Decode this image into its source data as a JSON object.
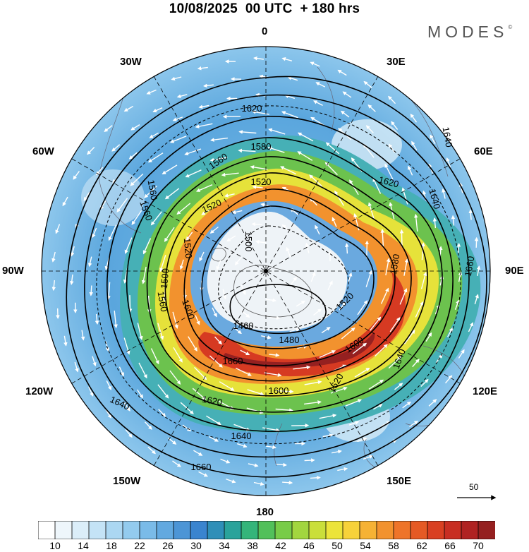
{
  "header": {
    "title": "10/08/2025  00 UTC  + 180 hrs",
    "brand": "MODES",
    "brand_mark": "©"
  },
  "map": {
    "projection": "south-polar-stereographic",
    "longitude_labels": {
      "top": "0",
      "top_right": "30E",
      "upper_right": "60E",
      "right": "90E",
      "lower_right": "120E",
      "bottom_right": "150E",
      "bottom": "180",
      "bottom_left": "150W",
      "lower_left": "120W",
      "left": "90W",
      "upper_left": "60W",
      "top_left": "30W"
    },
    "contour_labels": [
      "1620",
      "1580",
      "1560",
      "1520",
      "1520",
      "1520",
      "1500",
      "1500",
      "1560",
      "1560",
      "1600",
      "1620",
      "1640",
      "1640",
      "1660",
      "1640",
      "1620",
      "1600",
      "1580",
      "1640",
      "1660",
      "1620",
      "1560",
      "1460",
      "1480",
      "1520",
      "1600",
      "1640",
      "1660"
    ],
    "wind_vector_reference": "50",
    "colors": {
      "ocean_fill": "#ffffff",
      "contour_line": "#000000",
      "vector": "#ffffff"
    }
  },
  "colorbar": {
    "labels": [
      "10",
      "14",
      "18",
      "22",
      "26",
      "30",
      "34",
      "38",
      "42",
      "46",
      "50",
      "54",
      "58",
      "62",
      "66",
      "70"
    ],
    "colors": [
      "#ffffff",
      "#eef6fb",
      "#dbeef9",
      "#c4e3f6",
      "#abd7f2",
      "#93cbee",
      "#7abbe8",
      "#62a9e0",
      "#4c95d6",
      "#3a84cf",
      "#2f8fb8",
      "#2aa39b",
      "#34b57a",
      "#52c05a",
      "#78cc48",
      "#a2d63f",
      "#cadf3a",
      "#ece43a",
      "#f7d23a",
      "#f6b234",
      "#f2922e",
      "#ee7429",
      "#e55a25",
      "#d94022",
      "#c82e22",
      "#b02222",
      "#952020"
    ]
  }
}
